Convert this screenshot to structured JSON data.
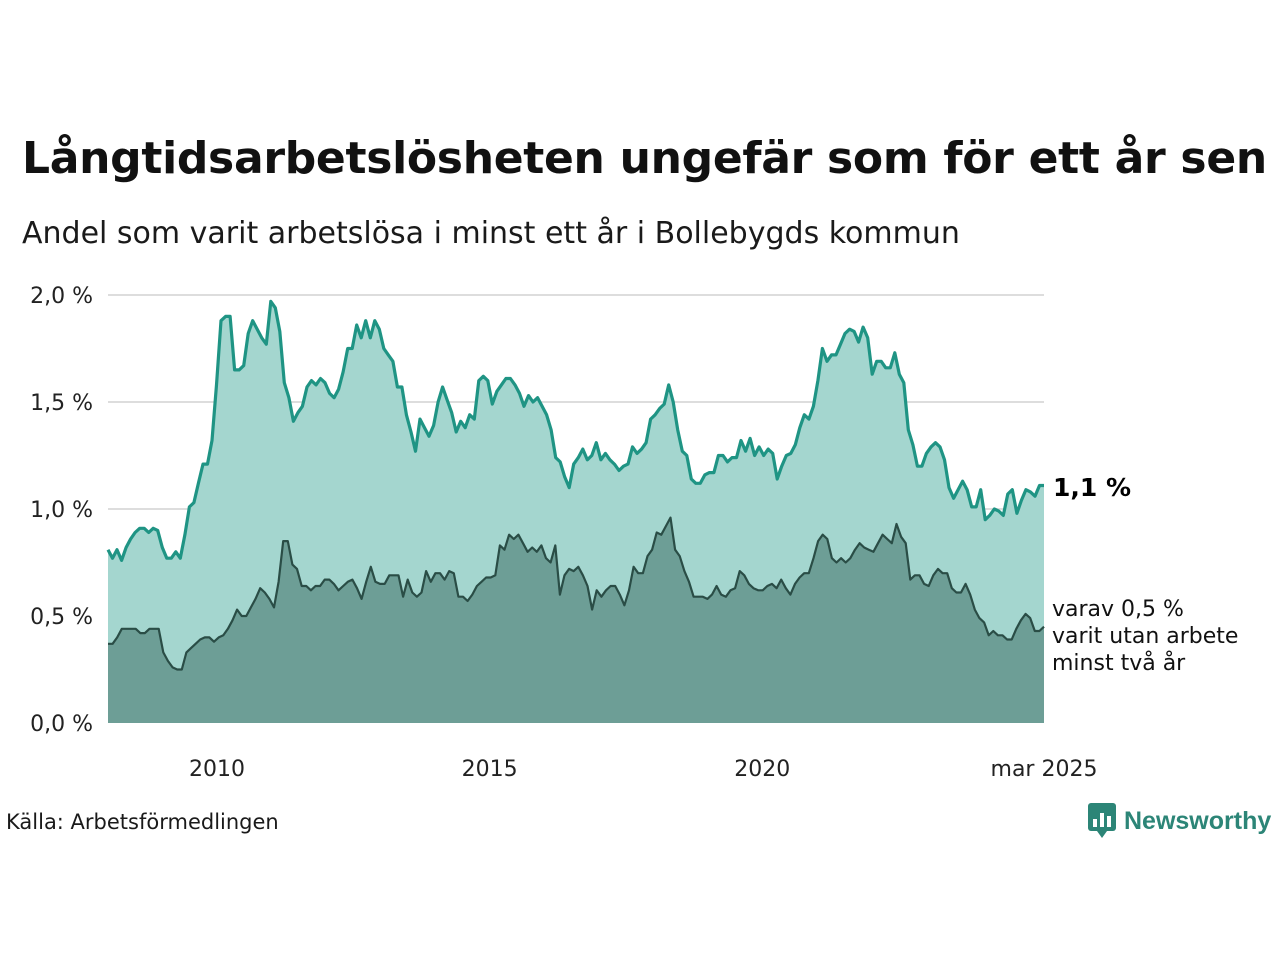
{
  "title": "Långtidsarbetslösheten ungefär som för ett år sen",
  "subtitle": "Andel som varit arbetslösa i minst ett år i Bollebygds kommun",
  "source": "Källa: Arbetsförmedlingen",
  "brand": {
    "name": "Newsworthy",
    "icon": "newsworthy-logo-icon"
  },
  "colors": {
    "total_line": "#1f9484",
    "total_fill": "#a4d6cf",
    "long_line": "#2a4d46",
    "long_fill": "#6d9e96",
    "grid": "#dddddd"
  },
  "chart_data": {
    "type": "area",
    "title": "Långtidsarbetslösheten ungefär som för ett år sen",
    "subtitle": "Andel som varit arbetslösa i minst ett år i Bollebygds kommun",
    "x_start": "2008-01",
    "x_end": "2025-03",
    "x_frequency": "monthly",
    "x_tick_labels": [
      {
        "value": "2010-01",
        "label": "2010"
      },
      {
        "value": "2015-01",
        "label": "2015"
      },
      {
        "value": "2020-01",
        "label": "2020"
      },
      {
        "value": "2025-03",
        "label": "mar 2025"
      }
    ],
    "y_ticks": [
      {
        "value": 0.0,
        "label": "0,0 %"
      },
      {
        "value": 0.5,
        "label": "0,5 %"
      },
      {
        "value": 1.0,
        "label": "1,0 %"
      },
      {
        "value": 1.5,
        "label": "1,5 %"
      },
      {
        "value": 2.0,
        "label": "2,0 %"
      }
    ],
    "ylim": [
      0,
      2.0
    ],
    "grid": true,
    "series": [
      {
        "label_line1": "1,1 %",
        "values": [
          0.81,
          0.77,
          0.81,
          0.76,
          0.82,
          0.86,
          0.89,
          0.91,
          0.91,
          0.89,
          0.91,
          0.9,
          0.82,
          0.77,
          0.77,
          0.8,
          0.77,
          0.88,
          1.01,
          1.03,
          1.12,
          1.21,
          1.21,
          1.32,
          1.58,
          1.88,
          1.9,
          1.9,
          1.65,
          1.65,
          1.67,
          1.82,
          1.88,
          1.84,
          1.8,
          1.77,
          1.97,
          1.94,
          1.83,
          1.59,
          1.52,
          1.41,
          1.45,
          1.48,
          1.57,
          1.6,
          1.58,
          1.61,
          1.59,
          1.54,
          1.52,
          1.56,
          1.64,
          1.75,
          1.75,
          1.86,
          1.8,
          1.88,
          1.8,
          1.88,
          1.84,
          1.75,
          1.72,
          1.69,
          1.57,
          1.57,
          1.44,
          1.36,
          1.27,
          1.42,
          1.38,
          1.34,
          1.39,
          1.5,
          1.57,
          1.51,
          1.45,
          1.36,
          1.41,
          1.38,
          1.44,
          1.42,
          1.6,
          1.62,
          1.6,
          1.49,
          1.55,
          1.58,
          1.61,
          1.61,
          1.58,
          1.54,
          1.48,
          1.53,
          1.5,
          1.52,
          1.48,
          1.44,
          1.37,
          1.24,
          1.22,
          1.15,
          1.1,
          1.21,
          1.24,
          1.28,
          1.23,
          1.25,
          1.31,
          1.23,
          1.26,
          1.23,
          1.21,
          1.18,
          1.2,
          1.21,
          1.29,
          1.26,
          1.28,
          1.31,
          1.42,
          1.44,
          1.47,
          1.49,
          1.58,
          1.5,
          1.37,
          1.27,
          1.25,
          1.14,
          1.12,
          1.12,
          1.16,
          1.17,
          1.17,
          1.25,
          1.25,
          1.22,
          1.24,
          1.24,
          1.32,
          1.27,
          1.33,
          1.25,
          1.29,
          1.25,
          1.28,
          1.26,
          1.14,
          1.2,
          1.25,
          1.26,
          1.3,
          1.38,
          1.44,
          1.42,
          1.48,
          1.6,
          1.75,
          1.69,
          1.72,
          1.72,
          1.77,
          1.82,
          1.84,
          1.83,
          1.78,
          1.85,
          1.8,
          1.63,
          1.69,
          1.69,
          1.66,
          1.66,
          1.73,
          1.63,
          1.59,
          1.37,
          1.3,
          1.2,
          1.2,
          1.26,
          1.29,
          1.31,
          1.29,
          1.23,
          1.1,
          1.05,
          1.09,
          1.13,
          1.09,
          1.01,
          1.01,
          1.09,
          0.95,
          0.97,
          1.0,
          0.99,
          0.97,
          1.07,
          1.09,
          0.98,
          1.04,
          1.09,
          1.08,
          1.06,
          1.11,
          1.11
        ]
      },
      {
        "label_line1": "varav 0,5 %",
        "label_line2": "varit utan arbete",
        "label_line3": "minst två år",
        "values": [
          0.37,
          0.37,
          0.4,
          0.44,
          0.44,
          0.44,
          0.44,
          0.42,
          0.42,
          0.44,
          0.44,
          0.44,
          0.33,
          0.29,
          0.26,
          0.25,
          0.25,
          0.33,
          0.35,
          0.37,
          0.39,
          0.4,
          0.4,
          0.38,
          0.4,
          0.41,
          0.44,
          0.48,
          0.53,
          0.5,
          0.5,
          0.54,
          0.58,
          0.63,
          0.61,
          0.58,
          0.54,
          0.66,
          0.85,
          0.85,
          0.74,
          0.72,
          0.64,
          0.64,
          0.62,
          0.64,
          0.64,
          0.67,
          0.67,
          0.65,
          0.62,
          0.64,
          0.66,
          0.67,
          0.63,
          0.58,
          0.66,
          0.73,
          0.66,
          0.65,
          0.65,
          0.69,
          0.69,
          0.69,
          0.59,
          0.67,
          0.61,
          0.59,
          0.61,
          0.71,
          0.66,
          0.7,
          0.7,
          0.67,
          0.71,
          0.7,
          0.59,
          0.59,
          0.57,
          0.6,
          0.64,
          0.66,
          0.68,
          0.68,
          0.69,
          0.83,
          0.81,
          0.88,
          0.86,
          0.88,
          0.84,
          0.8,
          0.82,
          0.8,
          0.83,
          0.77,
          0.75,
          0.83,
          0.6,
          0.69,
          0.72,
          0.71,
          0.73,
          0.69,
          0.64,
          0.53,
          0.62,
          0.59,
          0.62,
          0.64,
          0.64,
          0.6,
          0.55,
          0.62,
          0.73,
          0.7,
          0.7,
          0.78,
          0.81,
          0.89,
          0.88,
          0.92,
          0.96,
          0.81,
          0.78,
          0.71,
          0.66,
          0.59,
          0.59,
          0.59,
          0.58,
          0.6,
          0.64,
          0.6,
          0.59,
          0.62,
          0.63,
          0.71,
          0.69,
          0.65,
          0.63,
          0.62,
          0.62,
          0.64,
          0.65,
          0.63,
          0.67,
          0.63,
          0.6,
          0.65,
          0.68,
          0.7,
          0.7,
          0.77,
          0.85,
          0.88,
          0.86,
          0.77,
          0.75,
          0.77,
          0.75,
          0.77,
          0.81,
          0.84,
          0.82,
          0.81,
          0.8,
          0.84,
          0.88,
          0.86,
          0.84,
          0.93,
          0.87,
          0.84,
          0.67,
          0.69,
          0.69,
          0.65,
          0.64,
          0.69,
          0.72,
          0.7,
          0.7,
          0.63,
          0.61,
          0.61,
          0.65,
          0.6,
          0.53,
          0.49,
          0.47,
          0.41,
          0.43,
          0.41,
          0.41,
          0.39,
          0.39,
          0.44,
          0.48,
          0.51,
          0.49,
          0.43,
          0.43,
          0.45
        ]
      }
    ]
  }
}
